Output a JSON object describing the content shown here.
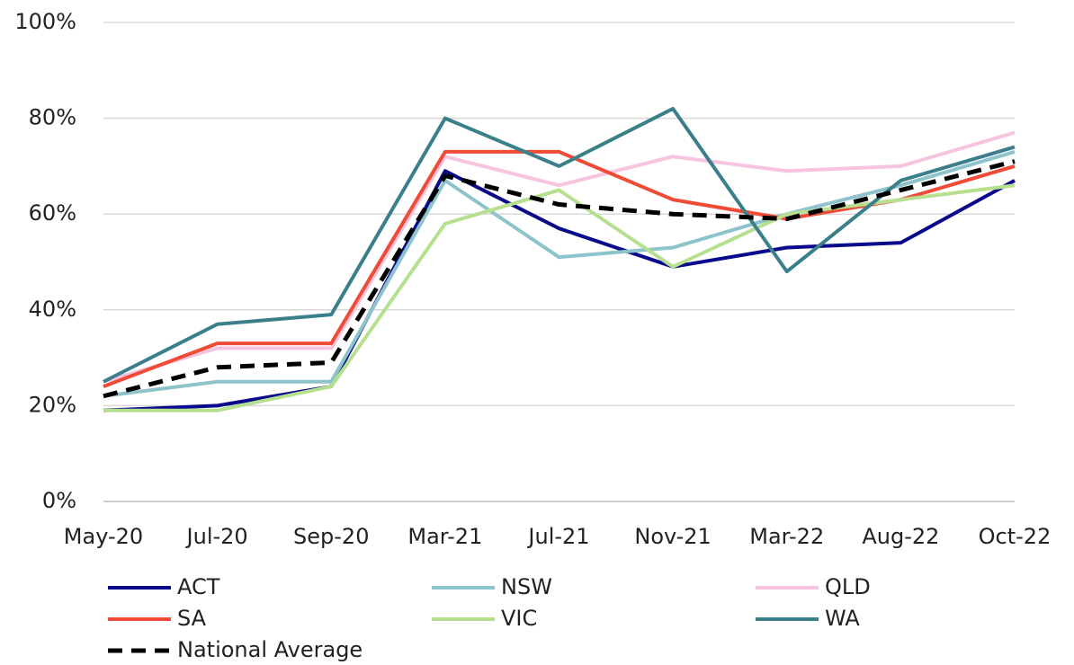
{
  "chart_data": {
    "type": "line",
    "categories": [
      "May-20",
      "Jul-20",
      "Sep-20",
      "Mar-21",
      "Jul-21",
      "Nov-21",
      "Mar-22",
      "Aug-22",
      "Oct-22"
    ],
    "series": [
      {
        "name": "ACT",
        "color": "#0a0a8c",
        "values": [
          19,
          20,
          24,
          69,
          57,
          49,
          53,
          54,
          67
        ]
      },
      {
        "name": "NSW",
        "color": "#8dc3cb",
        "values": [
          22,
          25,
          25,
          67,
          51,
          53,
          60,
          66,
          73
        ]
      },
      {
        "name": "QLD",
        "color": "#f6c4de",
        "values": [
          25,
          32,
          32,
          72,
          66,
          72,
          69,
          70,
          77
        ]
      },
      {
        "name": "SA",
        "color": "#ef4b36",
        "values": [
          24,
          33,
          33,
          73,
          73,
          63,
          59,
          63,
          70
        ]
      },
      {
        "name": "VIC",
        "color": "#b6df8f",
        "values": [
          19,
          19,
          24,
          58,
          65,
          49,
          60,
          63,
          66
        ]
      },
      {
        "name": "WA",
        "color": "#3b7f8b",
        "values": [
          25,
          37,
          39,
          80,
          70,
          82,
          48,
          67,
          74
        ]
      },
      {
        "name": "National Average",
        "color": "#000000",
        "dashed": true,
        "values": [
          22,
          28,
          29,
          68,
          62,
          60,
          59,
          65,
          71
        ]
      }
    ],
    "ylim": [
      0,
      100
    ],
    "yticks": [
      {
        "value": 0,
        "label": "0%"
      },
      {
        "value": 20,
        "label": "20%"
      },
      {
        "value": 40,
        "label": "40%"
      },
      {
        "value": 60,
        "label": "60%"
      },
      {
        "value": 80,
        "label": "80%"
      },
      {
        "value": 100,
        "label": "100%"
      }
    ],
    "grid": true
  }
}
